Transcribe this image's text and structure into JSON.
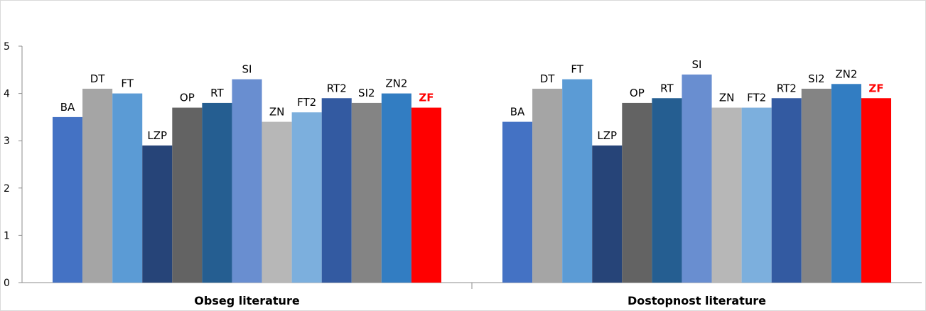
{
  "chart_data": {
    "type": "bar",
    "title": "",
    "xlabel": "",
    "ylabel": "",
    "ylim": [
      0,
      5
    ],
    "yticks": [
      "0",
      "1",
      "2",
      "3",
      "4",
      "5"
    ],
    "grid": false,
    "legend": "none",
    "categories": [
      "Obseg literature",
      "Dostopnost literature"
    ],
    "series": [
      {
        "label": "BA",
        "color": "#4472c4",
        "highlight": false,
        "values": [
          3.5,
          3.4
        ]
      },
      {
        "label": "DT",
        "color": "#a5a5a5",
        "highlight": false,
        "values": [
          4.1,
          4.1
        ]
      },
      {
        "label": "FT",
        "color": "#5b9bd5",
        "highlight": false,
        "values": [
          4.0,
          4.3
        ]
      },
      {
        "label": "LZP",
        "color": "#264478",
        "highlight": false,
        "values": [
          2.9,
          2.9
        ]
      },
      {
        "label": "OP",
        "color": "#636363",
        "highlight": false,
        "values": [
          3.7,
          3.8
        ]
      },
      {
        "label": "RT",
        "color": "#255e91",
        "highlight": false,
        "values": [
          3.8,
          3.9
        ]
      },
      {
        "label": "SI",
        "color": "#698ed0",
        "highlight": false,
        "values": [
          4.3,
          4.4
        ]
      },
      {
        "label": "ZN",
        "color": "#b7b7b7",
        "highlight": false,
        "values": [
          3.4,
          3.7
        ]
      },
      {
        "label": "FT2",
        "color": "#7cafdd",
        "highlight": false,
        "values": [
          3.6,
          3.7
        ]
      },
      {
        "label": "RT2",
        "color": "#335aa1",
        "highlight": false,
        "values": [
          3.9,
          3.9
        ]
      },
      {
        "label": "SI2",
        "color": "#848484",
        "highlight": false,
        "values": [
          3.8,
          4.1
        ]
      },
      {
        "label": "ZN2",
        "color": "#327dc2",
        "highlight": false,
        "values": [
          4.0,
          4.2
        ]
      },
      {
        "label": "ZF",
        "color": "#ff0000",
        "highlight": true,
        "values": [
          3.7,
          3.9
        ]
      }
    ]
  }
}
